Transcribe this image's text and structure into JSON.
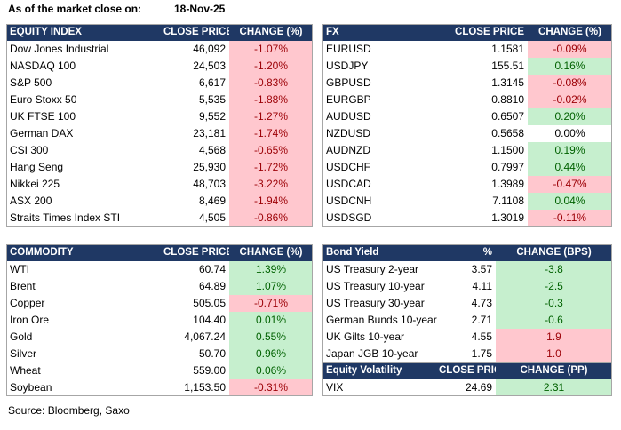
{
  "header": {
    "label": "As of the market close on:",
    "date": "18-Nov-25"
  },
  "tables": [
    {
      "columns": [
        "EQUITY INDEX",
        "CLOSE PRICE",
        "CHANGE (%)"
      ],
      "positive_fill": "#c6efce",
      "negative_fill": "#ffc7ce",
      "rows": [
        [
          "Dow Jones Industrial",
          "46,092",
          "-1.07%"
        ],
        [
          "NASDAQ 100",
          "24,503",
          "-1.20%"
        ],
        [
          "S&P 500",
          "6,617",
          "-0.83%"
        ],
        [
          "Euro Stoxx 50",
          "5,535",
          "-1.88%"
        ],
        [
          "UK FTSE 100",
          "9,552",
          "-1.27%"
        ],
        [
          "German DAX",
          "23,181",
          "-1.74%"
        ],
        [
          "CSI 300",
          "4,568",
          "-0.65%"
        ],
        [
          "Hang Seng",
          "25,930",
          "-1.72%"
        ],
        [
          "Nikkei 225",
          "48,703",
          "-3.22%"
        ],
        [
          "ASX 200",
          "8,469",
          "-1.94%"
        ],
        [
          "Straits Times Index STI",
          "4,505",
          "-0.86%"
        ]
      ]
    },
    {
      "columns": [
        "FX",
        "CLOSE PRICE",
        "CHANGE (%)"
      ],
      "positive_fill": "#c6efce",
      "negative_fill": "#ffc7ce",
      "rows": [
        [
          "EURUSD",
          "1.1581",
          "-0.09%"
        ],
        [
          "USDJPY",
          "155.51",
          "0.16%"
        ],
        [
          "GBPUSD",
          "1.3145",
          "-0.08%"
        ],
        [
          "EURGBP",
          "0.8810",
          "-0.02%"
        ],
        [
          "AUDUSD",
          "0.6507",
          "0.20%"
        ],
        [
          "NZDUSD",
          "0.5658",
          "0.00%"
        ],
        [
          "AUDNZD",
          "1.1500",
          "0.19%"
        ],
        [
          "USDCHF",
          "0.7997",
          "0.44%"
        ],
        [
          "USDCAD",
          "1.3989",
          "-0.47%"
        ],
        [
          "USDCNH",
          "7.1108",
          "0.04%"
        ],
        [
          "USDSGD",
          "1.3019",
          "-0.11%"
        ]
      ]
    },
    {
      "columns": [
        "COMMODITY",
        "CLOSE PRICE",
        "CHANGE (%)"
      ],
      "positive_fill": "#c6efce",
      "negative_fill": "#ffc7ce",
      "rows": [
        [
          "WTI",
          "60.74",
          "1.39%"
        ],
        [
          "Brent",
          "64.89",
          "1.07%"
        ],
        [
          "Copper",
          "505.05",
          "-0.71%"
        ],
        [
          "Iron Ore",
          "104.40",
          "0.01%"
        ],
        [
          "Gold",
          "4,067.24",
          "0.55%"
        ],
        [
          "Silver",
          "50.70",
          "0.96%"
        ],
        [
          "Wheat",
          "559.00",
          "0.06%"
        ],
        [
          "Soybean",
          "1,153.50",
          "-0.31%"
        ]
      ]
    },
    {
      "columns": [
        "Bond Yield",
        "%",
        "CHANGE (BPS)"
      ],
      "positive_fill": "#ffc7ce",
      "negative_fill": "#c6efce",
      "rows": [
        [
          "US Treasury 2-year",
          "3.57",
          "-3.8"
        ],
        [
          "US Treasury 10-year",
          "4.11",
          "-2.5"
        ],
        [
          "US Treasury 30-year",
          "4.73",
          "-0.3"
        ],
        [
          "German Bunds 10-year",
          "2.71",
          "-0.6"
        ],
        [
          "UK Gilts 10-year",
          "4.55",
          "1.9"
        ],
        [
          "Japan JGB 10-year",
          "1.75",
          "1.0"
        ]
      ]
    },
    {
      "columns": [
        "Equity Volatility",
        "CLOSE PRICE",
        "CHANGE (PP)"
      ],
      "positive_fill": "#c6efce",
      "negative_fill": "#ffc7ce",
      "rows": [
        [
          "VIX",
          "24.69",
          "2.31"
        ]
      ]
    }
  ],
  "footer": "Source: Bloomberg, Saxo"
}
